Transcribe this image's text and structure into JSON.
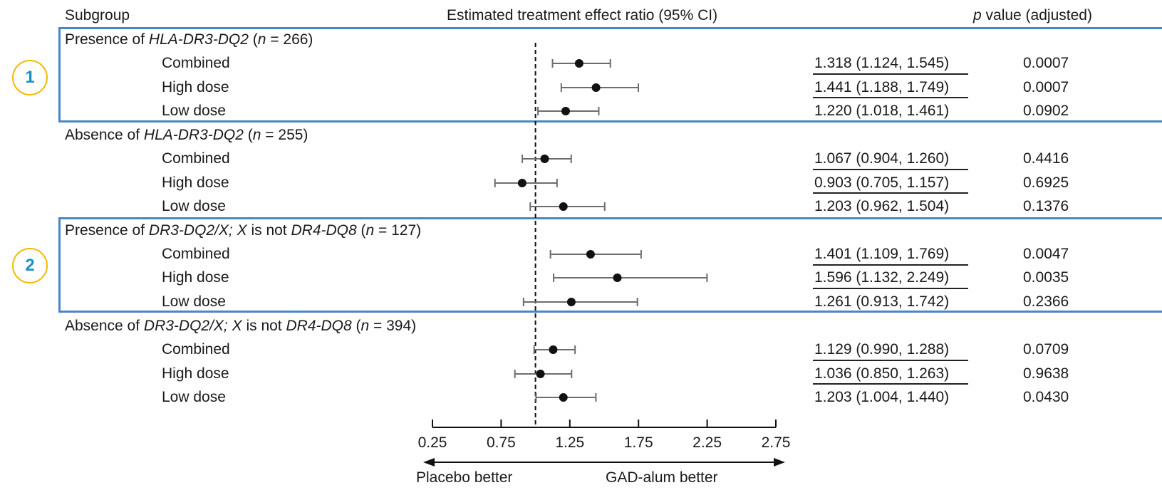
{
  "header": {
    "subgroup": "Subgroup",
    "effect": "Estimated treatment effect ratio (95% CI)",
    "pvalue_italic": "p",
    "pvalue_rest": " value (adjusted)"
  },
  "groups": [
    {
      "label_parts": [
        {
          "t": "Presence of ",
          "i": false
        },
        {
          "t": "HLA-DR3-DQ2",
          "i": true
        },
        {
          "t": " (",
          "i": false
        },
        {
          "t": "n",
          "i": true
        },
        {
          "t": " = 266)",
          "i": false
        }
      ],
      "rows": [
        {
          "label": "Combined",
          "est": "1.318 (1.124, 1.545)",
          "p": "0.0007"
        },
        {
          "label": "High dose",
          "est": "1.441 (1.188, 1.749)",
          "p": "0.0007"
        },
        {
          "label": "Low dose",
          "est": "1.220 (1.018, 1.461)",
          "p": "0.0902"
        }
      ]
    },
    {
      "label_parts": [
        {
          "t": "Absence of ",
          "i": false
        },
        {
          "t": "HLA-DR3-DQ2",
          "i": true
        },
        {
          "t": " (",
          "i": false
        },
        {
          "t": "n",
          "i": true
        },
        {
          "t": " = 255)",
          "i": false
        }
      ],
      "rows": [
        {
          "label": "Combined",
          "est": "1.067 (0.904, 1.260)",
          "p": "0.4416"
        },
        {
          "label": "High dose",
          "est": "0.903 (0.705, 1.157)",
          "p": "0.6925"
        },
        {
          "label": "Low dose",
          "est": "1.203 (0.962, 1.504)",
          "p": "0.1376"
        }
      ]
    },
    {
      "label_parts": [
        {
          "t": "Presence of ",
          "i": false
        },
        {
          "t": "DR3-DQ2/X; X",
          "i": true
        },
        {
          "t": " is not ",
          "i": false
        },
        {
          "t": "DR4-DQ8",
          "i": true
        },
        {
          "t": " (",
          "i": false
        },
        {
          "t": "n",
          "i": true
        },
        {
          "t": " = 127)",
          "i": false
        }
      ],
      "rows": [
        {
          "label": "Combined",
          "est": "1.401 (1.109, 1.769)",
          "p": "0.0047"
        },
        {
          "label": "High dose",
          "est": "1.596 (1.132, 2.249)",
          "p": "0.0035"
        },
        {
          "label": "Low dose",
          "est": "1.261 (0.913, 1.742)",
          "p": "0.2366"
        }
      ]
    },
    {
      "label_parts": [
        {
          "t": "Absence of ",
          "i": false
        },
        {
          "t": "DR3-DQ2/X; X",
          "i": true
        },
        {
          "t": " is not ",
          "i": false
        },
        {
          "t": "DR4-DQ8",
          "i": true
        },
        {
          "t": " (",
          "i": false
        },
        {
          "t": "n",
          "i": true
        },
        {
          "t": " = 394)",
          "i": false
        }
      ],
      "rows": [
        {
          "label": "Combined",
          "est": "1.129 (0.990, 1.288)",
          "p": "0.0709"
        },
        {
          "label": "High dose",
          "est": "1.036 (0.850, 1.263)",
          "p": "0.9638"
        },
        {
          "label": "Low dose",
          "est": "1.203 (1.004, 1.440)",
          "p": "0.0430"
        }
      ]
    }
  ],
  "badges": [
    "1",
    "2"
  ],
  "colors": {
    "frame": "#4a86c5",
    "badge_border": "#f5b800",
    "badge_text": "#1693c7"
  },
  "chart_data": {
    "type": "forest",
    "xlim": [
      0.25,
      2.75
    ],
    "xticks": [
      "0.25",
      "0.75",
      "1.25",
      "1.75",
      "2.25",
      "2.75"
    ],
    "reference_line": 1,
    "left_label": "Placebo better",
    "right_label": "GAD-alum better",
    "points": [
      {
        "est": 1.318,
        "lo": 1.124,
        "hi": 1.545
      },
      {
        "est": 1.441,
        "lo": 1.188,
        "hi": 1.749
      },
      {
        "est": 1.22,
        "lo": 1.018,
        "hi": 1.461
      },
      {
        "est": 1.067,
        "lo": 0.904,
        "hi": 1.26
      },
      {
        "est": 0.903,
        "lo": 0.705,
        "hi": 1.157
      },
      {
        "est": 1.203,
        "lo": 0.962,
        "hi": 1.504
      },
      {
        "est": 1.401,
        "lo": 1.109,
        "hi": 1.769
      },
      {
        "est": 1.596,
        "lo": 1.132,
        "hi": 2.249
      },
      {
        "est": 1.261,
        "lo": 0.913,
        "hi": 1.742
      },
      {
        "est": 1.129,
        "lo": 0.99,
        "hi": 1.288
      },
      {
        "est": 1.036,
        "lo": 0.85,
        "hi": 1.263
      },
      {
        "est": 1.203,
        "lo": 1.004,
        "hi": 1.44
      }
    ]
  }
}
